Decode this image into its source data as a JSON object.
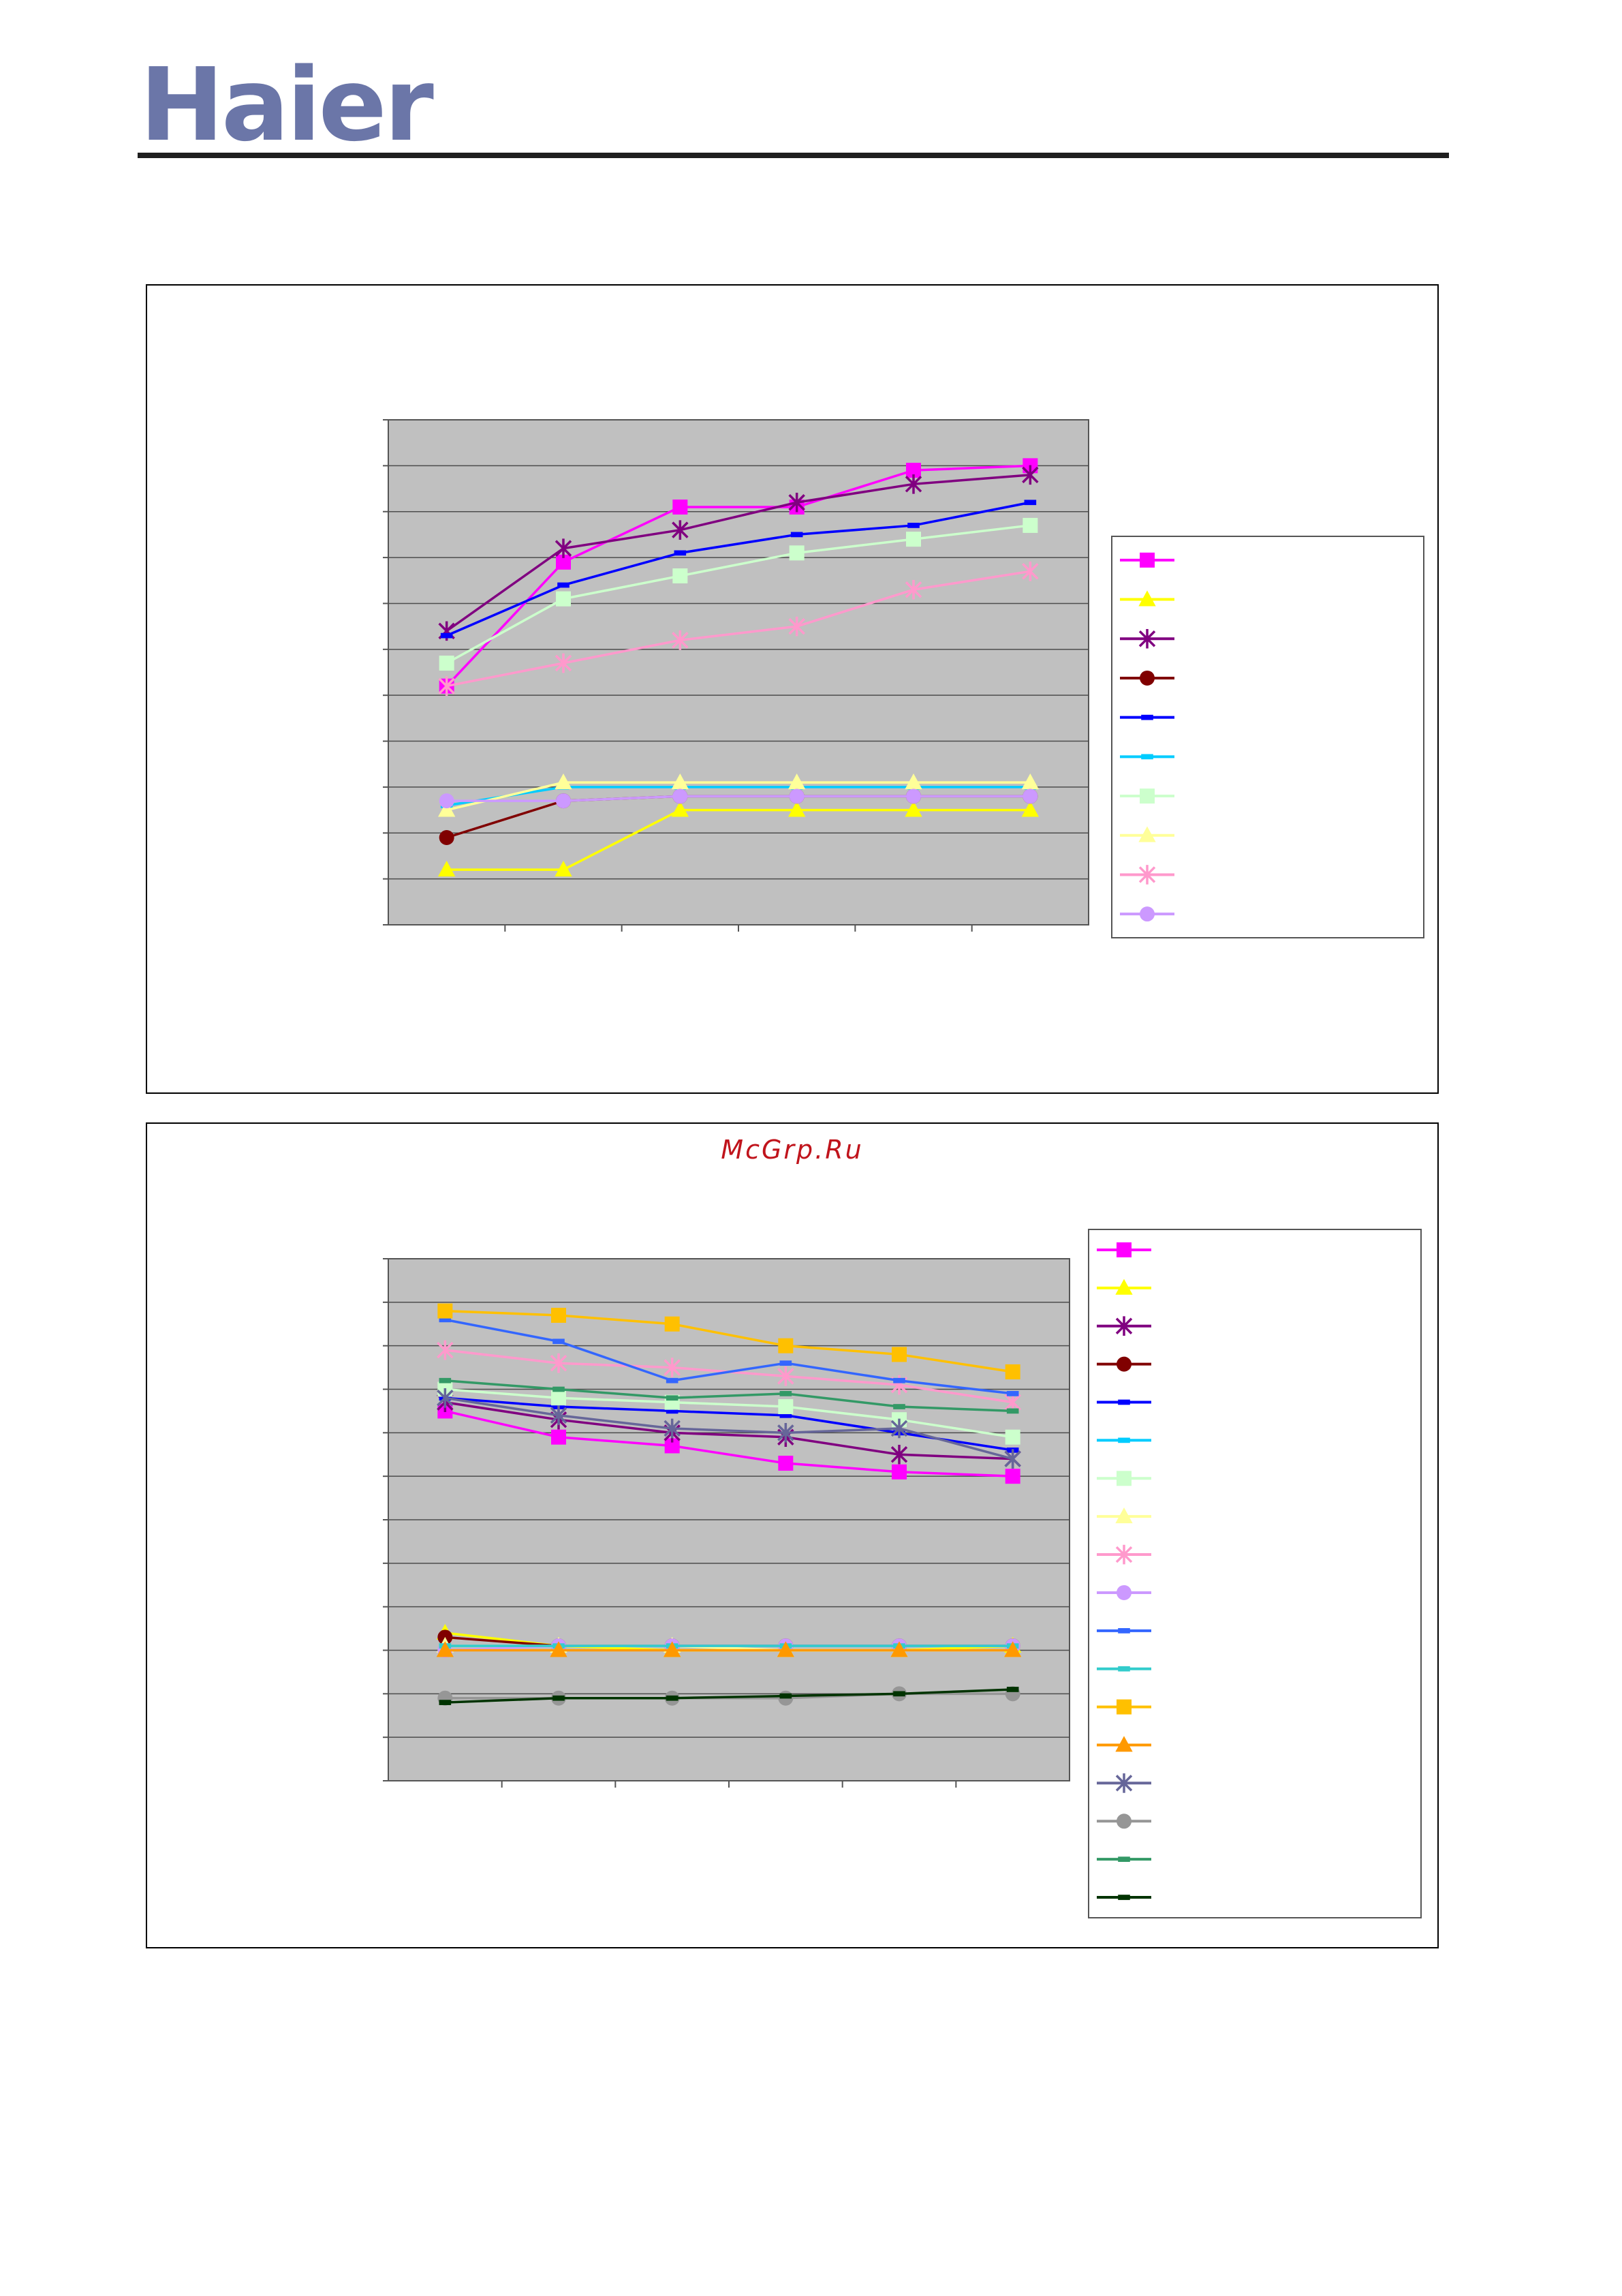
{
  "header": {
    "logo_text": "Haier",
    "logo_color": "#6b76a8"
  },
  "watermark": {
    "text": "McGrp.Ru",
    "color": "#c0141c"
  },
  "chart_data": [
    {
      "type": "line",
      "title": "",
      "xlabel": "",
      "ylabel": "",
      "x": [
        1,
        2,
        3,
        4,
        5,
        6
      ],
      "ylim": [
        0,
        11
      ],
      "grid": true,
      "legend": "right",
      "plot_background": "#c0c0c0",
      "series": [
        {
          "color": "#ff00ff",
          "marker": "square",
          "values": [
            5.2,
            7.9,
            9.1,
            9.1,
            9.9,
            10.0
          ]
        },
        {
          "color": "#ffff00",
          "marker": "triangle",
          "values": [
            1.2,
            1.2,
            2.5,
            2.5,
            2.5,
            2.5
          ]
        },
        {
          "color": "#800080",
          "marker": "star",
          "values": [
            6.4,
            8.2,
            8.6,
            9.2,
            9.6,
            9.8
          ]
        },
        {
          "color": "#800000",
          "marker": "circle",
          "values": [
            1.9,
            2.7,
            2.8,
            2.8,
            2.8,
            2.8
          ]
        },
        {
          "color": "#0000ff",
          "marker": "dash",
          "values": [
            6.3,
            7.4,
            8.1,
            8.5,
            8.7,
            9.2
          ]
        },
        {
          "color": "#00ccff",
          "marker": "dash",
          "values": [
            2.6,
            3.0,
            3.0,
            3.0,
            3.0,
            3.0
          ]
        },
        {
          "color": "#ccffcc",
          "marker": "square",
          "values": [
            5.7,
            7.1,
            7.6,
            8.1,
            8.4,
            8.7
          ]
        },
        {
          "color": "#ffff99",
          "marker": "triangle",
          "values": [
            2.5,
            3.1,
            3.1,
            3.1,
            3.1,
            3.1
          ]
        },
        {
          "color": "#ff99cc",
          "marker": "star",
          "values": [
            5.2,
            5.7,
            6.2,
            6.5,
            7.3,
            7.7
          ]
        },
        {
          "color": "#cc99ff",
          "marker": "circle",
          "values": [
            2.7,
            2.7,
            2.8,
            2.8,
            2.8,
            2.8
          ]
        }
      ]
    },
    {
      "type": "line",
      "title": "",
      "xlabel": "",
      "ylabel": "",
      "x": [
        1,
        2,
        3,
        4,
        5,
        6
      ],
      "ylim": [
        0,
        12
      ],
      "grid": true,
      "legend": "right",
      "plot_background": "#c0c0c0",
      "series": [
        {
          "color": "#ff00ff",
          "marker": "square",
          "values": [
            8.5,
            7.9,
            7.7,
            7.3,
            7.1,
            7.0
          ]
        },
        {
          "color": "#ffff00",
          "marker": "triangle",
          "values": [
            3.4,
            3.1,
            3.0,
            3.0,
            3.0,
            3.1
          ]
        },
        {
          "color": "#800080",
          "marker": "star",
          "values": [
            8.7,
            8.3,
            8.0,
            7.9,
            7.5,
            7.4
          ]
        },
        {
          "color": "#800000",
          "marker": "circle",
          "values": [
            3.3,
            3.1,
            3.1,
            3.1,
            3.1,
            3.1
          ]
        },
        {
          "color": "#0000ff",
          "marker": "dash",
          "values": [
            8.8,
            8.6,
            8.5,
            8.4,
            8.0,
            7.6
          ]
        },
        {
          "color": "#00ccff",
          "marker": "dash",
          "values": [
            3.1,
            3.1,
            3.1,
            3.1,
            3.1,
            3.1
          ]
        },
        {
          "color": "#ccffcc",
          "marker": "square",
          "values": [
            9.0,
            8.8,
            8.7,
            8.6,
            8.3,
            7.9
          ]
        },
        {
          "color": "#ffff99",
          "marker": "triangle",
          "values": [
            3.1,
            3.1,
            3.1,
            3.0,
            3.0,
            3.0
          ]
        },
        {
          "color": "#ff99cc",
          "marker": "star",
          "values": [
            9.9,
            9.6,
            9.5,
            9.3,
            9.1,
            8.7
          ]
        },
        {
          "color": "#cc99ff",
          "marker": "circle",
          "values": [
            3.0,
            3.1,
            3.1,
            3.1,
            3.1,
            3.1
          ]
        },
        {
          "color": "#3366ff",
          "marker": "dash",
          "values": [
            10.6,
            10.1,
            9.2,
            9.6,
            9.2,
            8.9
          ]
        },
        {
          "color": "#33cccc",
          "marker": "dash",
          "values": [
            3.1,
            3.1,
            3.1,
            3.1,
            3.1,
            3.1
          ]
        },
        {
          "color": "#ffc000",
          "marker": "square",
          "values": [
            10.8,
            10.7,
            10.5,
            10.0,
            9.8,
            9.4
          ]
        },
        {
          "color": "#ff9900",
          "marker": "triangle",
          "values": [
            3.0,
            3.0,
            3.0,
            3.0,
            3.0,
            3.0
          ]
        },
        {
          "color": "#666699",
          "marker": "star",
          "values": [
            8.8,
            8.4,
            8.1,
            8.0,
            8.1,
            7.4
          ]
        },
        {
          "color": "#969696",
          "marker": "circle",
          "values": [
            1.9,
            1.9,
            1.9,
            1.9,
            2.0,
            2.0
          ]
        },
        {
          "color": "#339966",
          "marker": "dash",
          "values": [
            9.2,
            9.0,
            8.8,
            8.9,
            8.6,
            8.5
          ]
        },
        {
          "color": "#003300",
          "marker": "dash",
          "values": [
            1.8,
            1.9,
            1.9,
            1.95,
            2.0,
            2.1
          ]
        }
      ]
    }
  ]
}
